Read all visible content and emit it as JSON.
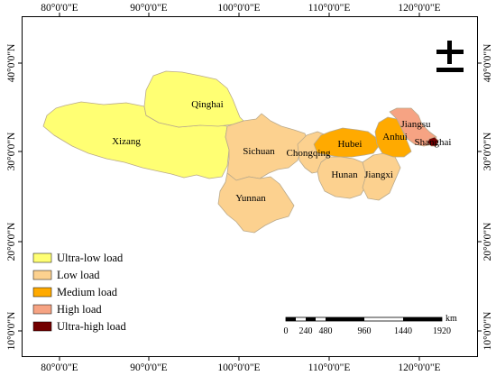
{
  "top_ticks": [
    "80°0'0\"E",
    "90°0'0\"E",
    "100°0'0\"E",
    "110°0'0\"E",
    "120°0'0\"E"
  ],
  "bottom_ticks": [
    "80°0'0\"E",
    "90°0'0\"E",
    "100°0'0\"E",
    "110°0'0\"E",
    "120°0'0\"E"
  ],
  "left_ticks": [
    "40°0'0\"N",
    "30°0'0\"N",
    "20°0'0\"N",
    "10°0'0\"N"
  ],
  "right_ticks": [
    "40°0'0\"N",
    "30°0'0\"N",
    "20°0'0\"N",
    "10°0'0\"N"
  ],
  "colors": {
    "ultra_low": "#ffff73",
    "low": "#fcd18f",
    "medium": "#ffaa00",
    "high": "#f6a383",
    "ultra_high": "#730000"
  },
  "provinces": {
    "xizang": "Xizang",
    "qinghai": "Qinghai",
    "sichuan": "Sichuan",
    "yunnan": "Yunnan",
    "chongqing": "Chongqing",
    "hubei": "Hubei",
    "hunan": "Hunan",
    "jiangxi": "Jiangxi",
    "anhui": "Anhui",
    "jiangsu": "Jiangsu",
    "shanghai": "Shanghai"
  },
  "legend": [
    {
      "label": "Ultra-low load",
      "color": "#ffff73"
    },
    {
      "label": "Low load",
      "color": "#fcd18f"
    },
    {
      "label": "Medium load",
      "color": "#ffaa00"
    },
    {
      "label": "High load",
      "color": "#f6a383"
    },
    {
      "label": "Ultra-high load",
      "color": "#730000"
    }
  ],
  "scale_bar": {
    "unit": "km",
    "labels": [
      "0",
      "240",
      "480",
      "960",
      "1440",
      "1920"
    ]
  }
}
